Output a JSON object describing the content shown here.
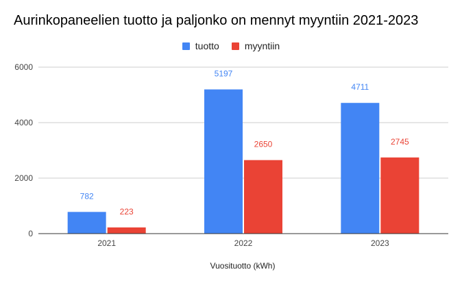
{
  "chart_data": {
    "type": "bar",
    "title": "Aurinkopaneelien tuotto ja paljonko on mennyt myyntiin 2021-2023",
    "xlabel": "Vuosituotto (kWh)",
    "ylabel": "",
    "categories": [
      "2021",
      "2022",
      "2023"
    ],
    "ylim": [
      0,
      6000
    ],
    "yticks": [
      0,
      2000,
      4000,
      6000
    ],
    "grid": true,
    "legend_position": "top-center",
    "series": [
      {
        "name": "tuotto",
        "values": [
          782,
          5197,
          4711
        ],
        "color": "#4285f4"
      },
      {
        "name": "myyntiin",
        "values": [
          223,
          2650,
          2745
        ],
        "color": "#ea4335"
      }
    ]
  }
}
